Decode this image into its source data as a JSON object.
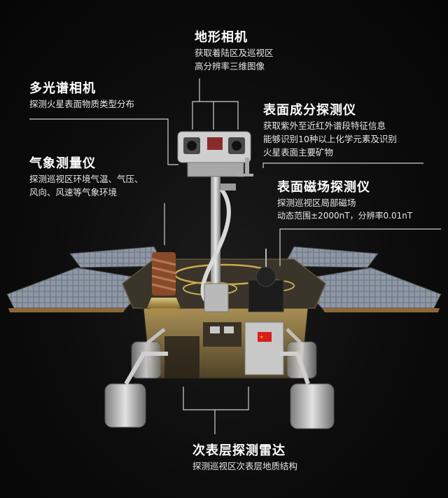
{
  "labels": {
    "terrain_camera": {
      "title": "地形相机",
      "desc": [
        "获取着陆区及巡视区",
        "高分辨率三维图像"
      ]
    },
    "multispectral_camera": {
      "title": "多光谱相机",
      "desc": [
        "探测火星表面物质类型分布"
      ]
    },
    "surface_composition": {
      "title": "表面成分探测仪",
      "desc": [
        "获取紫外至近红外谱段特征信息",
        "能够识别10种以上化学元素及识别",
        "火星表面主要矿物"
      ]
    },
    "meteorology": {
      "title": "气象测量仪",
      "desc": [
        "探测巡视区环境气温、气压、",
        "风向、风速等气象环境"
      ]
    },
    "magnetometer": {
      "title": "表面磁场探测仪",
      "desc": [
        "探测巡视区局部磁场",
        "动态范围±2000nT，分辨率0.01nT"
      ]
    },
    "radar": {
      "title": "次表层探测雷达",
      "desc": [
        "探测巡视区次表层地质结构"
      ]
    }
  },
  "colors": {
    "background": "#0b0b0b",
    "text": "#ffffff",
    "leader": "#cfcfcf",
    "gold": "#b89a55",
    "solar_panel": "#7d8694",
    "flag_red": "#d81e1e"
  }
}
